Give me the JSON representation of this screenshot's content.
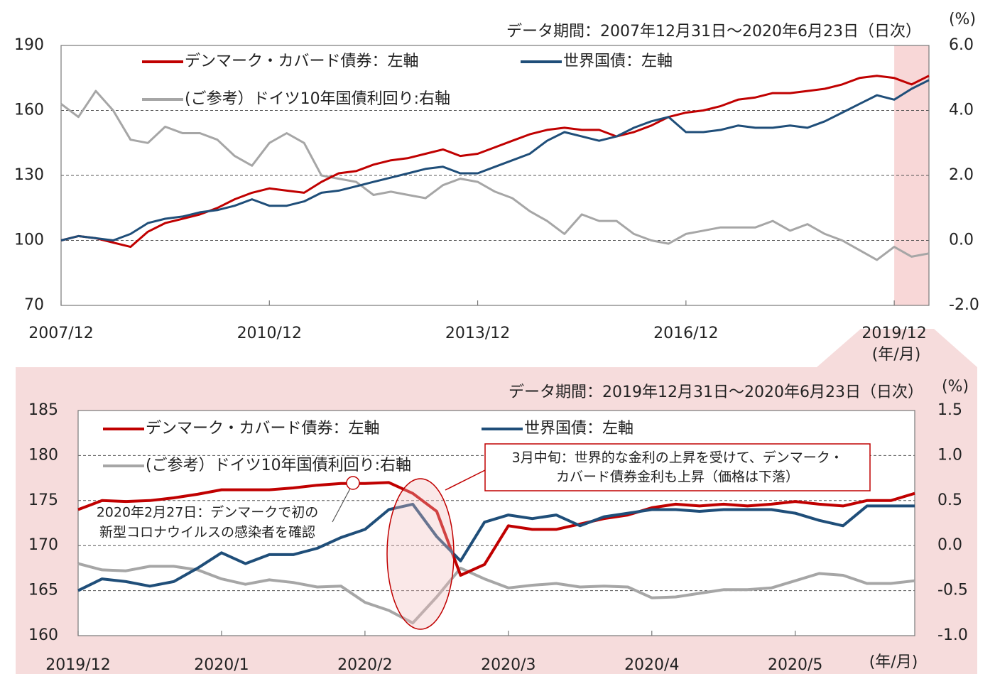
{
  "chart_data": [
    {
      "type": "line",
      "period_note": "データ期間：2007年12月31日～2020年6月23日（日次）",
      "y2_unit": "(%)",
      "x_unit": "(年/月)",
      "x": [
        "2007/12",
        "2008/03",
        "2008/06",
        "2008/09",
        "2008/12",
        "2009/03",
        "2009/06",
        "2009/09",
        "2009/12",
        "2010/03",
        "2010/06",
        "2010/09",
        "2010/12",
        "2011/03",
        "2011/06",
        "2011/09",
        "2011/12",
        "2012/03",
        "2012/06",
        "2012/09",
        "2012/12",
        "2013/03",
        "2013/06",
        "2013/09",
        "2013/12",
        "2014/03",
        "2014/06",
        "2014/09",
        "2014/12",
        "2015/03",
        "2015/06",
        "2015/09",
        "2015/12",
        "2016/03",
        "2016/06",
        "2016/09",
        "2016/12",
        "2017/03",
        "2017/06",
        "2017/09",
        "2017/12",
        "2018/03",
        "2018/06",
        "2018/09",
        "2018/12",
        "2019/03",
        "2019/06",
        "2019/09",
        "2019/12",
        "2020/03",
        "2020/06"
      ],
      "xlim": [
        "2007/12",
        "2020/06"
      ],
      "xticks": [
        "2007/12",
        "2010/12",
        "2013/12",
        "2016/12",
        "2019/12"
      ],
      "highlight": [
        "2019/12",
        "2020/06"
      ],
      "ylim": [
        70,
        190
      ],
      "yticks": [
        70,
        100,
        130,
        160,
        190
      ],
      "y2lim": [
        -2,
        6
      ],
      "y2ticks": [
        {
          "value": -2,
          "label": "-2.0"
        },
        {
          "value": 0,
          "label": "0.0"
        },
        {
          "value": 2,
          "label": "2.0"
        },
        {
          "value": 4,
          "label": "4.0"
        },
        {
          "value": 6,
          "label": "6.0"
        }
      ],
      "grid": true,
      "series": [
        {
          "name": "デンマーク・カバード債券：左軸",
          "color": "#c00000",
          "values": [
            100,
            102,
            101,
            99,
            97,
            104,
            108,
            110,
            112,
            115,
            119,
            122,
            124,
            123,
            122,
            127,
            131,
            132,
            135,
            137,
            138,
            140,
            142,
            139,
            140,
            143,
            146,
            149,
            151,
            152,
            151,
            151,
            148,
            150,
            153,
            157,
            159,
            160,
            162,
            165,
            166,
            168,
            168,
            169,
            170,
            172,
            175,
            176,
            175,
            172,
            176
          ]
        },
        {
          "name": "世界国債：左軸",
          "color": "#1f4e79",
          "values": [
            100,
            102,
            101,
            100,
            103,
            108,
            110,
            111,
            113,
            114,
            116,
            119,
            116,
            116,
            118,
            122,
            123,
            125,
            127,
            129,
            131,
            133,
            134,
            131,
            131,
            134,
            137,
            140,
            146,
            150,
            148,
            146,
            148,
            152,
            155,
            157,
            150,
            150,
            151,
            153,
            152,
            152,
            153,
            152,
            155,
            159,
            163,
            167,
            165,
            170,
            174
          ]
        },
        {
          "name": "(ご参考）ドイツ10年国債利回り:右軸",
          "color": "#a6a6a6",
          "axis": "y2",
          "values": [
            4.2,
            3.8,
            4.6,
            4.0,
            3.1,
            3.0,
            3.5,
            3.3,
            3.3,
            3.1,
            2.6,
            2.3,
            3.0,
            3.3,
            3.0,
            2.0,
            1.9,
            1.8,
            1.4,
            1.5,
            1.4,
            1.3,
            1.7,
            1.9,
            1.8,
            1.5,
            1.3,
            0.9,
            0.6,
            0.2,
            0.8,
            0.6,
            0.6,
            0.2,
            0.0,
            -0.1,
            0.2,
            0.3,
            0.4,
            0.4,
            0.4,
            0.6,
            0.3,
            0.5,
            0.2,
            0.0,
            -0.3,
            -0.6,
            -0.2,
            -0.5,
            -0.4
          ]
        }
      ]
    },
    {
      "type": "line",
      "period_note": "データ期間：2019年12月31日～2020年6月23日（日次）",
      "y2_unit": "(%)",
      "x_unit": "(年/月)",
      "categories": [
        "2019/12",
        null,
        null,
        null,
        null,
        null,
        "2020/1",
        null,
        null,
        null,
        null,
        null,
        "2020/2",
        null,
        null,
        null,
        null,
        null,
        "2020/3",
        null,
        null,
        null,
        null,
        null,
        "2020/4",
        null,
        null,
        null,
        null,
        null,
        "2020/5",
        null,
        null,
        null,
        null,
        null
      ],
      "ylim": [
        160,
        185
      ],
      "yticks": [
        160,
        165,
        170,
        175,
        180,
        185
      ],
      "y2lim": [
        -1,
        1.5
      ],
      "y2ticks": [
        {
          "value": -1,
          "label": "-1.0"
        },
        {
          "value": -0.5,
          "label": "-0.5"
        },
        {
          "value": 0,
          "label": "0.0"
        },
        {
          "value": 0.5,
          "label": "0.5"
        },
        {
          "value": 1,
          "label": "1.0"
        },
        {
          "value": 1.5,
          "label": "1.5"
        }
      ],
      "grid": true,
      "series": [
        {
          "name": "デンマーク・カバード債券：左軸",
          "color": "#c00000",
          "values": [
            174.0,
            175.0,
            174.9,
            175.0,
            175.3,
            175.7,
            176.2,
            176.2,
            176.2,
            176.4,
            176.7,
            176.9,
            176.9,
            177.0,
            175.8,
            173.8,
            166.7,
            167.9,
            172.2,
            171.8,
            171.8,
            172.4,
            173.0,
            173.4,
            174.2,
            174.6,
            174.4,
            174.6,
            174.4,
            174.6,
            174.9,
            174.6,
            174.4,
            175.0,
            175.0,
            175.8
          ]
        },
        {
          "name": "世界国債：左軸",
          "color": "#1f4e79",
          "values": [
            165.0,
            166.3,
            166.0,
            165.5,
            166.0,
            167.5,
            169.2,
            168.0,
            169.0,
            169.0,
            169.7,
            170.9,
            171.8,
            174.0,
            174.6,
            171.0,
            168.3,
            172.6,
            173.4,
            173.0,
            173.4,
            172.2,
            173.2,
            173.6,
            174.0,
            174.0,
            173.8,
            174.0,
            174.0,
            174.0,
            173.6,
            172.8,
            172.2,
            174.4,
            174.4,
            174.4
          ]
        },
        {
          "name": "(ご参考）ドイツ10年国債利回り:右軸",
          "color": "#a6a6a6",
          "axis": "y2",
          "values": [
            -0.2,
            -0.27,
            -0.28,
            -0.23,
            -0.23,
            -0.27,
            -0.37,
            -0.43,
            -0.38,
            -0.41,
            -0.46,
            -0.45,
            -0.63,
            -0.72,
            -0.86,
            -0.57,
            -0.25,
            -0.37,
            -0.47,
            -0.44,
            -0.42,
            -0.46,
            -0.45,
            -0.46,
            -0.58,
            -0.57,
            -0.53,
            -0.49,
            -0.49,
            -0.47,
            -0.39,
            -0.31,
            -0.33,
            -0.42,
            -0.42,
            -0.39
          ]
        }
      ],
      "annotations": [
        {
          "lines": [
            "3月中旬：世界的な金利の上昇を受けて、デンマーク・",
            "カバード債券金利も上昇（価格は下落）"
          ]
        },
        {
          "lines": [
            "2020年2月27日：デンマークで初の",
            "新型コロナウイルスの感染者を確認"
          ]
        }
      ]
    }
  ]
}
